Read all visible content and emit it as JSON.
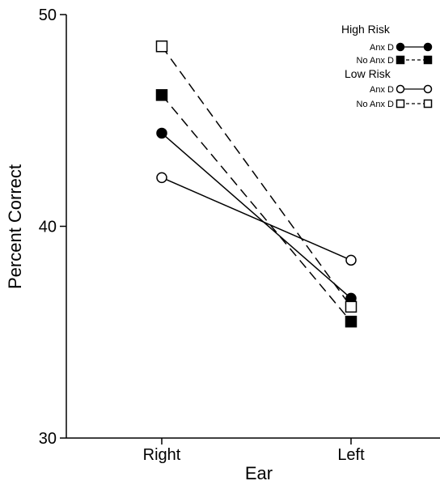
{
  "chart_data": {
    "type": "line",
    "xlabel": "Ear",
    "ylabel": "Percent Correct",
    "categories": [
      "Right",
      "Left"
    ],
    "ylim": [
      30,
      50
    ],
    "yticks": [
      30,
      40,
      50
    ],
    "grid": false,
    "legend_position": "top-right",
    "legend_groups": [
      {
        "title": "High Risk",
        "entries": [
          "Anx D",
          "No Anx D"
        ]
      },
      {
        "title": "Low Risk",
        "entries": [
          "Anx D",
          "No Anx D"
        ]
      }
    ],
    "series": [
      {
        "group": "High Risk",
        "name": "Anx D",
        "values": [
          44.4,
          36.6
        ],
        "marker": "circle",
        "fill": "filled",
        "line": "solid"
      },
      {
        "group": "High Risk",
        "name": "No Anx D",
        "values": [
          46.2,
          35.5
        ],
        "marker": "square",
        "fill": "filled",
        "line": "dashed"
      },
      {
        "group": "Low Risk",
        "name": "Anx D",
        "values": [
          42.3,
          38.4
        ],
        "marker": "circle",
        "fill": "open",
        "line": "solid"
      },
      {
        "group": "Low Risk",
        "name": "No Anx D",
        "values": [
          48.5,
          36.2
        ],
        "marker": "square",
        "fill": "open",
        "line": "dashed"
      }
    ]
  }
}
